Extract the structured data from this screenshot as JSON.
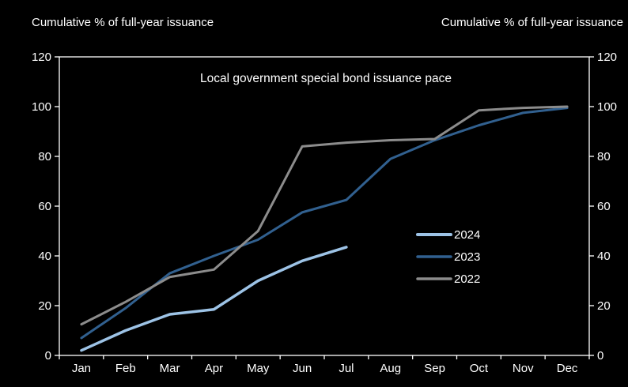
{
  "header": {
    "left_axis_title": "Cumulative % of full-year issuance",
    "right_axis_title": "Cumulative % of full-year issuance"
  },
  "chart_data": {
    "type": "line",
    "title": "Local government special bond issuance pace",
    "categories": [
      "Jan",
      "Feb",
      "Mar",
      "Apr",
      "May",
      "Jun",
      "Jul",
      "Aug",
      "Sep",
      "Oct",
      "Nov",
      "Dec"
    ],
    "ylabel_left": "Cumulative % of full-year issuance",
    "ylabel_right": "Cumulative % of full-year issuance",
    "ylim": [
      0,
      120
    ],
    "ytick_step": 20,
    "grid": false,
    "background": "#000000",
    "axis_color": "#ffffff",
    "legend_position": "center-right",
    "series": [
      {
        "name": "2024",
        "color": "#9dc3e6",
        "stroke_width": 3.5,
        "values": [
          2,
          10,
          16.5,
          18.5,
          30,
          38,
          43.5
        ]
      },
      {
        "name": "2023",
        "color": "#31608f",
        "stroke_width": 3,
        "values": [
          7,
          19,
          33,
          40,
          46.5,
          57.5,
          62.5,
          79,
          86.5,
          92.5,
          97.5,
          99.5
        ]
      },
      {
        "name": "2022",
        "color": "#8c8c8c",
        "stroke_width": 3,
        "values": [
          12.5,
          21.5,
          31.5,
          34.5,
          50,
          84,
          85.5,
          86.5,
          87,
          98.5,
          99.5,
          100
        ]
      }
    ]
  }
}
